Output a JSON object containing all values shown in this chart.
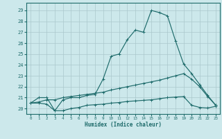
{
  "bg_color": "#cce8eb",
  "grid_color": "#aac8cc",
  "line_color": "#1e6b6b",
  "xlabel": "Humidex (Indice chaleur)",
  "ylim": [
    19.5,
    29.7
  ],
  "xlim": [
    -0.5,
    23.5
  ],
  "yticks": [
    20,
    21,
    22,
    23,
    24,
    25,
    26,
    27,
    28,
    29
  ],
  "xticks": [
    0,
    1,
    2,
    3,
    4,
    5,
    6,
    7,
    8,
    9,
    10,
    11,
    12,
    13,
    14,
    15,
    16,
    17,
    18,
    19,
    20,
    21,
    22,
    23
  ],
  "line1_x": [
    0,
    1,
    2,
    3,
    4,
    5,
    6,
    7,
    8,
    9,
    10,
    11,
    12,
    13,
    14,
    15,
    16,
    17,
    18,
    19,
    20,
    21,
    22,
    23
  ],
  "line1_y": [
    20.5,
    21.0,
    21.0,
    19.8,
    20.8,
    21.0,
    21.0,
    21.2,
    21.3,
    22.7,
    24.8,
    25.0,
    26.3,
    27.2,
    27.0,
    29.0,
    28.8,
    28.5,
    26.2,
    24.1,
    23.2,
    22.2,
    21.2,
    20.3
  ],
  "line2_x": [
    0,
    1,
    2,
    3,
    4,
    5,
    6,
    7,
    8,
    9,
    10,
    11,
    12,
    13,
    14,
    15,
    16,
    17,
    18,
    19,
    20,
    21,
    22,
    23
  ],
  "line2_y": [
    20.5,
    20.6,
    20.8,
    20.8,
    21.0,
    21.1,
    21.2,
    21.3,
    21.4,
    21.5,
    21.7,
    21.85,
    22.0,
    22.15,
    22.3,
    22.45,
    22.6,
    22.8,
    23.0,
    23.2,
    22.7,
    22.0,
    21.1,
    20.3
  ],
  "line3_x": [
    0,
    1,
    2,
    3,
    4,
    5,
    6,
    7,
    8,
    9,
    10,
    11,
    12,
    13,
    14,
    15,
    16,
    17,
    18,
    19,
    20,
    21,
    22,
    23
  ],
  "line3_y": [
    20.5,
    20.5,
    20.4,
    19.8,
    19.8,
    20.0,
    20.1,
    20.3,
    20.35,
    20.4,
    20.5,
    20.55,
    20.65,
    20.7,
    20.75,
    20.8,
    20.9,
    21.0,
    21.05,
    21.1,
    20.3,
    20.1,
    20.05,
    20.2
  ]
}
